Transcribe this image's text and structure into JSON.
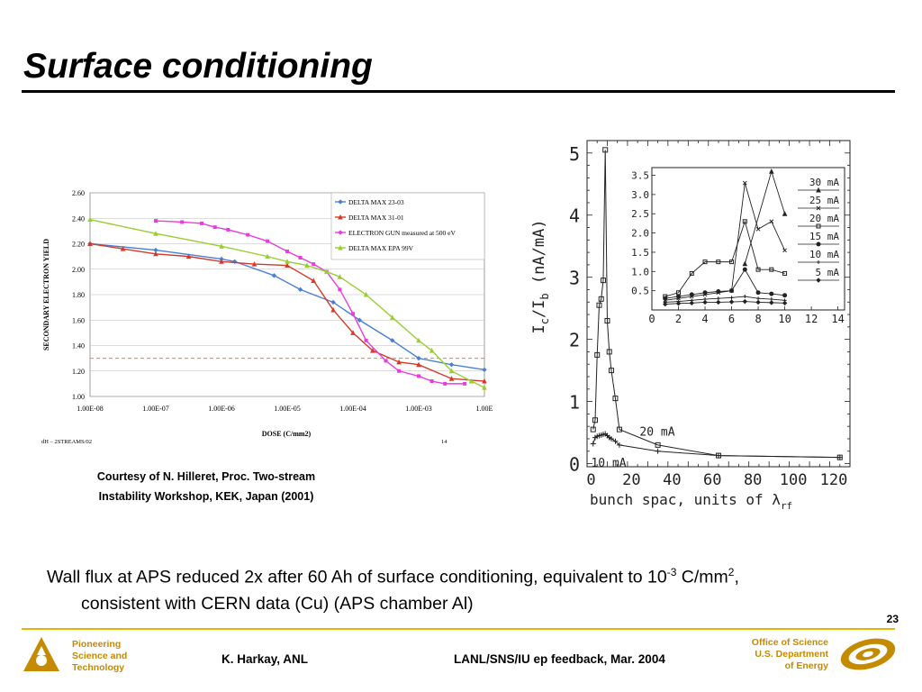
{
  "slide": {
    "title": "Surface conditioning",
    "courtesy_line1": "Courtesy of N. Hilleret, Proc. Two-stream",
    "courtesy_line2": "Instability Workshop, KEK, Japan (2001)",
    "bullet_line1": "Wall flux at APS reduced 2x after 60 Ah of surface conditioning, equivalent to 10",
    "bullet_exp": "-3",
    "bullet_unit": " C/mm",
    "bullet_sq": "2",
    "bullet_comma": ",",
    "bullet_line2": "consistent with CERN data (Cu) (APS chamber Al)",
    "page_number": "23"
  },
  "footer": {
    "left_lines": [
      "Pioneering",
      "Science and",
      "Technology"
    ],
    "author": "K. Harkay, ANL",
    "event": "LANL/SNS/IU ep feedback, Mar. 2004",
    "right_lines": [
      "Office of Science",
      "U.S. Department",
      "of Energy"
    ]
  },
  "chart_data": [
    {
      "type": "line",
      "xlabel": "DOSE (C/mm2)",
      "ylabel": "SECONDARY ELECTRON YIELD",
      "x_scale": "log",
      "x_ticks": [
        "1.00E-08",
        "1.00E-07",
        "1.00E-06",
        "1.00E-05",
        "1.00E-04",
        "1.00E-03",
        "1.00E"
      ],
      "y_ticks": [
        "2.60",
        "2.40",
        "2.20",
        "2.00",
        "1.80",
        "1.60",
        "1.40",
        "1.20",
        "1.00"
      ],
      "ylim": [
        1.0,
        2.6
      ],
      "xlim_log10": [
        -8,
        -2
      ],
      "legend_position": "top-right",
      "footnote_left": "dH – 2STREAMS/02",
      "footnote_right": "14",
      "reference_line_y": 1.3,
      "series": [
        {
          "name": "DELTA MAX 23-03",
          "color": "#4a7fd4",
          "marker": "diamond",
          "log10x": [
            -8,
            -7,
            -6,
            -5.8,
            -5.2,
            -4.8,
            -4.3,
            -3.9,
            -3.4,
            -3.0,
            -2.5,
            -2.0
          ],
          "y": [
            2.2,
            2.15,
            2.08,
            2.06,
            1.95,
            1.84,
            1.74,
            1.6,
            1.44,
            1.3,
            1.25,
            1.21
          ]
        },
        {
          "name": "DELTA MAX 31-01",
          "color": "#d43a2a",
          "marker": "triangle",
          "log10x": [
            -8,
            -7.5,
            -7,
            -6.5,
            -6,
            -5.5,
            -5,
            -4.6,
            -4.3,
            -4.0,
            -3.7,
            -3.3,
            -3.0,
            -2.5,
            -2.0
          ],
          "y": [
            2.2,
            2.16,
            2.12,
            2.1,
            2.06,
            2.04,
            2.03,
            1.91,
            1.68,
            1.5,
            1.36,
            1.27,
            1.25,
            1.14,
            1.12
          ]
        },
        {
          "name": "ELECTRON GUN  measured at 500 eV",
          "color": "#e83ce0",
          "marker": "square",
          "log10x": [
            -7,
            -6.6,
            -6.3,
            -6.1,
            -5.9,
            -5.6,
            -5.3,
            -5.0,
            -4.8,
            -4.6,
            -4.4,
            -4.2,
            -4.0,
            -3.8,
            -3.5,
            -3.3,
            -3.0,
            -2.8,
            -2.6,
            -2.3
          ],
          "y": [
            2.38,
            2.37,
            2.36,
            2.33,
            2.31,
            2.27,
            2.22,
            2.14,
            2.09,
            2.04,
            1.98,
            1.84,
            1.65,
            1.44,
            1.28,
            1.2,
            1.16,
            1.12,
            1.1,
            1.1
          ]
        },
        {
          "name": "DELTA MAX EPA 99V",
          "color": "#9acd32",
          "marker": "triangle",
          "log10x": [
            -8,
            -7,
            -6,
            -5.3,
            -5.0,
            -4.7,
            -4.4,
            -4.2,
            -3.8,
            -3.4,
            -3.0,
            -2.8,
            -2.5,
            -2.2,
            -2.0
          ],
          "y": [
            2.39,
            2.28,
            2.18,
            2.1,
            2.06,
            2.03,
            1.98,
            1.94,
            1.8,
            1.62,
            1.44,
            1.36,
            1.2,
            1.12,
            1.07
          ]
        }
      ]
    },
    {
      "type": "line",
      "xlabel": "bunch spac, units of λ",
      "xlabel_sub": "rf",
      "ylabel": "I",
      "ylabel_sub1": "c",
      "ylabel_mid": "/I",
      "ylabel_sub2": "b",
      "ylabel_tail": " (nA/mA)",
      "x_ticks": [
        "0",
        "20",
        "40",
        "60",
        "80",
        "100",
        "120"
      ],
      "y_ticks": [
        "5",
        "4",
        "3",
        "2",
        "1",
        "0"
      ],
      "xlim": [
        -2,
        128
      ],
      "ylim": [
        -0.05,
        5.2
      ],
      "series": [
        {
          "name": "20 mA",
          "marker": "square",
          "x": [
            1,
            2,
            3,
            4,
            5,
            6,
            7,
            8,
            9,
            10,
            12,
            14,
            33,
            63,
            123
          ],
          "y": [
            0.55,
            0.7,
            1.75,
            2.55,
            2.65,
            2.95,
            5.05,
            2.3,
            1.8,
            1.5,
            1.05,
            0.55,
            0.3,
            0.13,
            0.1
          ]
        },
        {
          "name": "10 mA",
          "marker": "plus",
          "x": [
            1,
            2,
            3,
            4,
            5,
            6,
            7,
            8,
            9,
            10,
            12,
            14,
            33,
            63,
            123
          ],
          "y": [
            0.32,
            0.42,
            0.44,
            0.45,
            0.46,
            0.47,
            0.48,
            0.45,
            0.42,
            0.4,
            0.36,
            0.3,
            0.2,
            0.13,
            0.1
          ]
        }
      ],
      "inset": {
        "x_ticks": [
          "0",
          "2",
          "4",
          "6",
          "8",
          "10",
          "12",
          "14"
        ],
        "y_ticks": [
          "3.5",
          "3.0",
          "2.5",
          "2.0",
          "1.5",
          "1.0",
          "0.5"
        ],
        "xlim": [
          0,
          14.5
        ],
        "ylim": [
          0,
          3.7
        ],
        "series": [
          {
            "name": "30 mA",
            "marker": "triangle",
            "x": [
              7,
              9,
              10
            ],
            "y": [
              1.2,
              3.6,
              2.5
            ]
          },
          {
            "name": "25 mA",
            "marker": "x",
            "x": [
              1,
              2,
              3,
              4,
              5,
              6,
              7,
              8,
              9,
              10
            ],
            "y": [
              0.25,
              0.3,
              0.35,
              0.4,
              0.45,
              0.5,
              3.3,
              2.1,
              2.3,
              1.55
            ]
          },
          {
            "name": "20 mA",
            "marker": "square",
            "x": [
              1,
              2,
              3,
              4,
              5,
              6,
              7,
              8,
              9,
              10
            ],
            "y": [
              0.35,
              0.45,
              0.95,
              1.25,
              1.25,
              1.25,
              2.3,
              1.05,
              1.05,
              0.95
            ]
          },
          {
            "name": "15 mA",
            "marker": "circle",
            "x": [
              1,
              2,
              3,
              4,
              5,
              6,
              7,
              8,
              9,
              10
            ],
            "y": [
              0.3,
              0.35,
              0.4,
              0.45,
              0.48,
              0.5,
              1.05,
              0.45,
              0.42,
              0.38
            ]
          },
          {
            "name": "10 mA",
            "marker": "plus",
            "x": [
              1,
              2,
              3,
              4,
              5,
              6,
              7,
              8,
              9,
              10
            ],
            "y": [
              0.2,
              0.22,
              0.25,
              0.28,
              0.3,
              0.32,
              0.35,
              0.3,
              0.28,
              0.25
            ]
          },
          {
            "name": "5 mA",
            "marker": "diamond",
            "x": [
              1,
              2,
              3,
              4,
              5,
              6,
              7,
              8,
              9,
              10
            ],
            "y": [
              0.15,
              0.17,
              0.18,
              0.2,
              0.2,
              0.21,
              0.22,
              0.2,
              0.19,
              0.18
            ]
          }
        ]
      }
    }
  ]
}
